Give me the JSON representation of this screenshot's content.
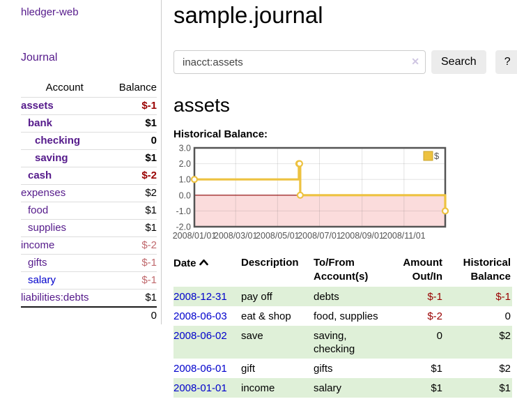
{
  "app": {
    "title": "hledger-web"
  },
  "sidebar": {
    "nav": {
      "journal_label": "Journal"
    },
    "accounts_table": {
      "headers": {
        "account": "Account",
        "balance": "Balance"
      },
      "rows": [
        {
          "name": "assets",
          "balance": "$-1",
          "depth": 1,
          "bold": true,
          "negative": true,
          "color": "purple"
        },
        {
          "name": "bank",
          "balance": "$1",
          "depth": 2,
          "bold": true,
          "negative": false,
          "color": "purple"
        },
        {
          "name": "checking",
          "balance": "0",
          "depth": 3,
          "bold": true,
          "negative": false,
          "color": "purple"
        },
        {
          "name": "saving",
          "balance": "$1",
          "depth": 3,
          "bold": true,
          "negative": false,
          "color": "purple"
        },
        {
          "name": "cash",
          "balance": "$-2",
          "depth": 2,
          "bold": true,
          "negative": true,
          "color": "purple"
        },
        {
          "name": "expenses",
          "balance": "$2",
          "depth": 1,
          "bold": false,
          "negative": false,
          "color": "purple"
        },
        {
          "name": "food",
          "balance": "$1",
          "depth": 2,
          "bold": false,
          "negative": false,
          "color": "purple"
        },
        {
          "name": "supplies",
          "balance": "$1",
          "depth": 2,
          "bold": false,
          "negative": false,
          "color": "purple"
        },
        {
          "name": "income",
          "balance": "$-2",
          "depth": 1,
          "bold": false,
          "negative": true,
          "color": "purple"
        },
        {
          "name": "gifts",
          "balance": "$-1",
          "depth": 2,
          "bold": false,
          "negative": true,
          "color": "purple"
        },
        {
          "name": "salary",
          "balance": "$-1",
          "depth": 2,
          "bold": false,
          "negative": true,
          "color": "blue"
        },
        {
          "name": "liabilities:debts",
          "balance": "$1",
          "depth": 1,
          "bold": false,
          "negative": false,
          "color": "purple"
        }
      ],
      "total": "0"
    }
  },
  "main": {
    "title": "sample.journal",
    "search": {
      "value": "inacct:assets",
      "clear_icon": "✕",
      "search_label": "Search",
      "help_label": "?"
    },
    "account_heading": "assets",
    "chart_heading": "Historical Balance:"
  },
  "chart_data": {
    "type": "line",
    "title": "Historical Balance:",
    "step": true,
    "series": [
      {
        "name": "$",
        "color": "#edc240",
        "points": [
          [
            "2008-01-01",
            1
          ],
          [
            "2008-06-01",
            2
          ],
          [
            "2008-06-02",
            2
          ],
          [
            "2008-06-03",
            0
          ],
          [
            "2008-12-31",
            -1
          ]
        ]
      }
    ],
    "xlim": [
      "2008-01-01",
      "2008-12-31"
    ],
    "ylim": [
      -2,
      3
    ],
    "y_ticks": [
      "3.0",
      "2.0",
      "1.0",
      "0.0",
      "-1.0",
      "-2.0"
    ],
    "x_ticks": [
      {
        "label": "2008/01/01",
        "date": "2008-01-01"
      },
      {
        "label": "2008/03/01",
        "date": "2008-03-01"
      },
      {
        "label": "2008/05/01",
        "date": "2008-05-01"
      },
      {
        "label": "2008/07/01",
        "date": "2008-07-01"
      },
      {
        "label": "2008/09/01",
        "date": "2008-09-01"
      },
      {
        "label": "2008/11/01",
        "date": "2008-11-01"
      }
    ],
    "legend": {
      "label": "$",
      "position": "top-right"
    },
    "grid": true,
    "negative_region_color": "#fbdcdc",
    "zero_line_color": "#8b0000",
    "border_color": "#545454",
    "tick_color": "#545454"
  },
  "register_table": {
    "headers": {
      "date": "Date",
      "description": "Description",
      "tofrom": [
        "To/From",
        "Account(s)"
      ],
      "amount": [
        "Amount",
        "Out/In"
      ],
      "balance": [
        "Historical",
        "Balance"
      ]
    },
    "rows": [
      {
        "date": "2008-12-31",
        "description": "pay off",
        "accounts": "debts",
        "amount": "$-1",
        "amount_negative": true,
        "balance": "$-1",
        "balance_negative": true
      },
      {
        "date": "2008-06-03",
        "description": "eat & shop",
        "accounts": "food, supplies",
        "amount": "$-2",
        "amount_negative": true,
        "balance": "0",
        "balance_negative": false
      },
      {
        "date": "2008-06-02",
        "description": "save",
        "accounts": "saving, checking",
        "amount": "0",
        "amount_negative": false,
        "balance": "$2",
        "balance_negative": false
      },
      {
        "date": "2008-06-01",
        "description": "gift",
        "accounts": "gifts",
        "amount": "$1",
        "amount_negative": false,
        "balance": "$2",
        "balance_negative": false
      },
      {
        "date": "2008-01-01",
        "description": "income",
        "accounts": "salary",
        "amount": "$1",
        "amount_negative": false,
        "balance": "$1",
        "balance_negative": false
      }
    ]
  }
}
